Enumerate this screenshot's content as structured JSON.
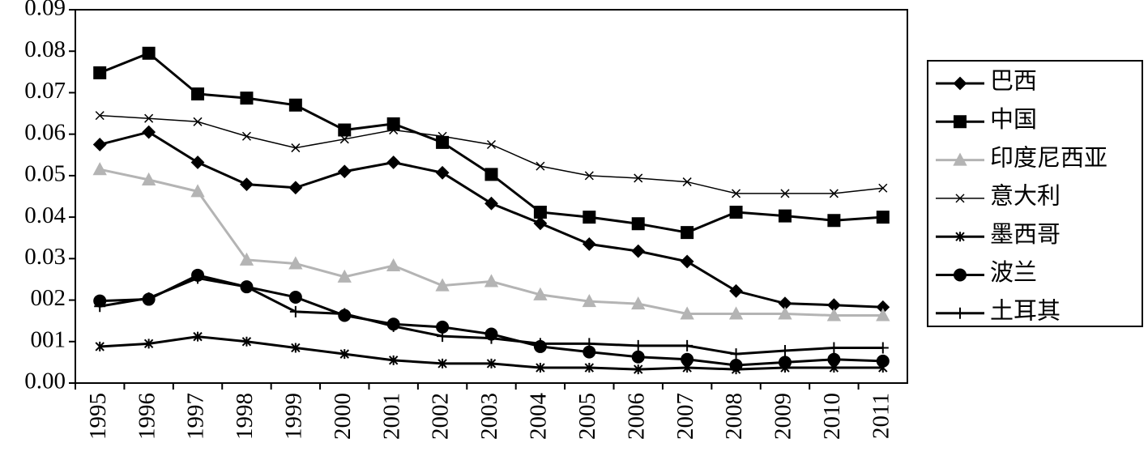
{
  "chart_data": {
    "type": "line",
    "categories": [
      "1995",
      "1996",
      "1997",
      "1998",
      "1999",
      "2000",
      "2001",
      "2002",
      "2003",
      "2004",
      "2005",
      "2006",
      "2007",
      "2008",
      "2009",
      "2010",
      "2011"
    ],
    "ylim": [
      0,
      0.09
    ],
    "yticks": [
      {
        "value": 0,
        "label": "0.00"
      },
      {
        "value": 0.01,
        "label": "001"
      },
      {
        "value": 0.02,
        "label": "002"
      },
      0.03,
      0.04,
      0.05,
      0.06,
      0.07,
      0.08,
      0.09
    ],
    "series": [
      {
        "name": "巴西",
        "color": "#000000",
        "marker": "diamond",
        "values": [
          0.0575,
          0.0605,
          0.0532,
          0.0479,
          0.0471,
          0.051,
          0.0532,
          0.0507,
          0.0433,
          0.0385,
          0.0335,
          0.0318,
          0.0293,
          0.0222,
          0.0192,
          0.0188,
          0.0183
        ]
      },
      {
        "name": "中国",
        "color": "#000000",
        "marker": "square",
        "values": [
          0.0748,
          0.0795,
          0.0697,
          0.0687,
          0.067,
          0.061,
          0.0625,
          0.058,
          0.0503,
          0.0412,
          0.04,
          0.0384,
          0.0363,
          0.0412,
          0.0403,
          0.0392,
          0.04
        ]
      },
      {
        "name": "印度尼西亚",
        "color": "#b4b4b4",
        "marker": "triangle",
        "values": [
          0.0515,
          0.049,
          0.0462,
          0.0297,
          0.0288,
          0.0256,
          0.0283,
          0.0235,
          0.0245,
          0.0213,
          0.0197,
          0.0191,
          0.0167,
          0.0167,
          0.0167,
          0.0163,
          0.0163
        ]
      },
      {
        "name": "意大利",
        "color": "#000000",
        "marker": "x",
        "values": [
          0.0645,
          0.0638,
          0.063,
          0.0595,
          0.0567,
          0.0588,
          0.061,
          0.0595,
          0.0575,
          0.0523,
          0.05,
          0.0494,
          0.0485,
          0.0457,
          0.0457,
          0.0457,
          0.047
        ]
      },
      {
        "name": "墨西哥",
        "color": "#000000",
        "marker": "asterisk",
        "values": [
          0.0088,
          0.0095,
          0.0112,
          0.01,
          0.0085,
          0.007,
          0.0055,
          0.0047,
          0.0047,
          0.0037,
          0.0037,
          0.0033,
          0.0037,
          0.0033,
          0.0037,
          0.0037,
          0.0037
        ]
      },
      {
        "name": "波兰",
        "color": "#000000",
        "marker": "circle",
        "values": [
          0.0198,
          0.0202,
          0.026,
          0.0232,
          0.0207,
          0.0163,
          0.0142,
          0.0135,
          0.0118,
          0.0088,
          0.0075,
          0.0063,
          0.0057,
          0.0043,
          0.005,
          0.0057,
          0.0053
        ]
      },
      {
        "name": "土耳其",
        "color": "#000000",
        "marker": "plus",
        "values": [
          0.0185,
          0.0205,
          0.0253,
          0.0232,
          0.0172,
          0.0167,
          0.0137,
          0.0113,
          0.0108,
          0.0095,
          0.0095,
          0.009,
          0.009,
          0.007,
          0.0078,
          0.0085,
          0.0085
        ]
      }
    ],
    "legend": "right"
  }
}
